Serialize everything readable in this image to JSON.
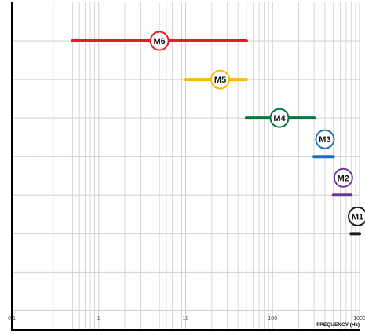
{
  "chart_data": {
    "type": "range",
    "xscale": "log",
    "xlim": [
      0.1,
      1000
    ],
    "xlabel": "FREQUENCY (Hz)",
    "xticks": [
      "0.1",
      "1",
      "10",
      "100",
      "1000"
    ],
    "grid": true,
    "series": [
      {
        "name": "M6",
        "color": "#e31e24",
        "x_start": 0.5,
        "x_end": 50,
        "marker_x": 5
      },
      {
        "name": "M5",
        "color": "#fbba00",
        "x_start": 10,
        "x_end": 50,
        "marker_x": 25
      },
      {
        "name": "M4",
        "color": "#007a3d",
        "x_start": 50,
        "x_end": 300,
        "marker_x": 120
      },
      {
        "name": "M3",
        "color": "#1d71b8",
        "x_start": 300,
        "x_end": 500,
        "marker_x": 400
      },
      {
        "name": "M2",
        "color": "#6c3894",
        "x_start": 500,
        "x_end": 800,
        "marker_x": 650
      },
      {
        "name": "M1",
        "color": "#1a1a1a",
        "x_start": 800,
        "x_end": 1000,
        "marker_x": 950
      }
    ]
  }
}
